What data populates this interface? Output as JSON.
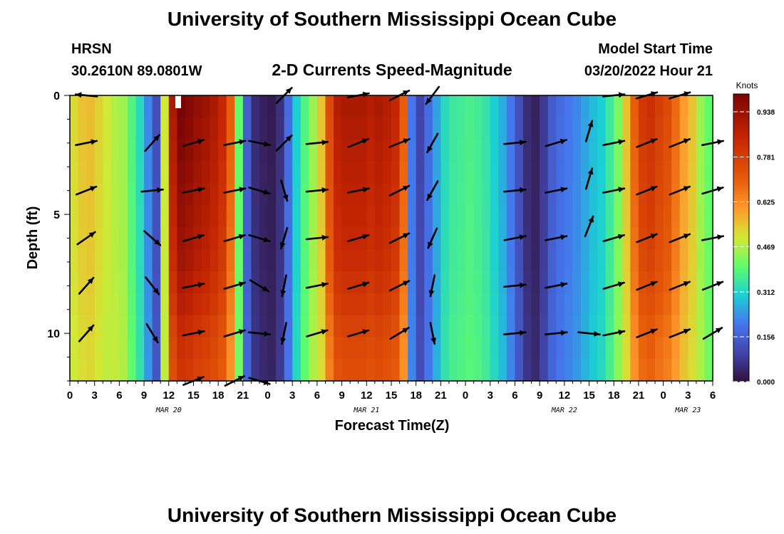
{
  "page": {
    "title": "University of Southern Mississippi Ocean Cube",
    "footer_title": "University of Southern Mississippi Ocean Cube"
  },
  "header": {
    "station": "HRSN",
    "coords": "30.2610N  89.0801W",
    "subtitle": "2-D Currents Speed-Magnitude",
    "model_label": "Model Start Time",
    "model_time": "03/20/2022 Hour 21"
  },
  "chart_data": {
    "type": "heatmap",
    "xlabel": "Forecast Time(Z)",
    "ylabel": "Depth (ft)",
    "x_start_hour": 0,
    "x_end_hour": 78,
    "x_tick_labels": [
      "0",
      "3",
      "6",
      "9",
      "12",
      "15",
      "18",
      "21",
      "0",
      "3",
      "6",
      "9",
      "12",
      "15",
      "18",
      "21",
      "0",
      "3",
      "6",
      "9",
      "12",
      "15",
      "18",
      "21",
      "0",
      "3",
      "6"
    ],
    "date_labels": [
      {
        "text": "MAR 20",
        "hour": 12
      },
      {
        "text": "MAR 21",
        "hour": 36
      },
      {
        "text": "MAR 22",
        "hour": 60
      },
      {
        "text": "MAR 23",
        "hour": 75
      }
    ],
    "ylim": [
      0,
      12
    ],
    "y_ticks": [
      0,
      5,
      10
    ],
    "colorbar": {
      "title": "Knots",
      "min": 0,
      "max": 1.0,
      "ticks": [
        "0.000",
        "0.156",
        "0.312",
        "0.469",
        "0.625",
        "0.781",
        "0.938"
      ]
    },
    "speed_profile_hourly": [
      0.52,
      0.55,
      0.56,
      0.53,
      0.5,
      0.47,
      0.45,
      0.38,
      0.32,
      0.22,
      0.12,
      0.5,
      0.9,
      1.0,
      0.98,
      0.95,
      0.93,
      0.9,
      0.85,
      0.7,
      0.4,
      0.15,
      0.05,
      0.03,
      0.02,
      0.06,
      0.18,
      0.3,
      0.38,
      0.45,
      0.55,
      0.75,
      0.88,
      0.9,
      0.9,
      0.9,
      0.88,
      0.9,
      0.88,
      0.85,
      0.7,
      0.2,
      0.1,
      0.18,
      0.25,
      0.32,
      0.35,
      0.36,
      0.37,
      0.36,
      0.34,
      0.3,
      0.26,
      0.2,
      0.12,
      0.05,
      0.03,
      0.08,
      0.15,
      0.18,
      0.2,
      0.22,
      0.25,
      0.28,
      0.3,
      0.35,
      0.42,
      0.55,
      0.7,
      0.8,
      0.82,
      0.78,
      0.75,
      0.68,
      0.6,
      0.55,
      0.45,
      0.4,
      0.4
    ],
    "depth_factor": [
      1.0,
      0.98,
      0.96,
      0.94,
      0.92,
      0.9,
      0.88,
      0.86,
      0.82,
      0.78,
      0.72,
      0.68,
      0.65
    ],
    "vectors": [
      {
        "hour": 2,
        "depth": 0,
        "u": -1,
        "v": 0.1
      },
      {
        "hour": 2,
        "depth": 2,
        "u": 1,
        "v": 0.2
      },
      {
        "hour": 2,
        "depth": 4,
        "u": 1,
        "v": 0.4
      },
      {
        "hour": 2,
        "depth": 6,
        "u": 1,
        "v": 0.7
      },
      {
        "hour": 2,
        "depth": 8,
        "u": 0.8,
        "v": 0.9
      },
      {
        "hour": 2,
        "depth": 10,
        "u": 0.8,
        "v": 0.9
      },
      {
        "hour": 10,
        "depth": 2,
        "u": 0.8,
        "v": 0.9
      },
      {
        "hour": 10,
        "depth": 4,
        "u": 1,
        "v": 0.1
      },
      {
        "hour": 10,
        "depth": 6,
        "u": 0.8,
        "v": -0.7
      },
      {
        "hour": 10,
        "depth": 8,
        "u": 0.7,
        "v": -0.9
      },
      {
        "hour": 10,
        "depth": 10,
        "u": 0.6,
        "v": -1.0
      },
      {
        "hour": 15,
        "depth": 2,
        "u": 1,
        "v": 0.3
      },
      {
        "hour": 15,
        "depth": 4,
        "u": 1,
        "v": 0.2
      },
      {
        "hour": 15,
        "depth": 6,
        "u": 1,
        "v": 0.3
      },
      {
        "hour": 15,
        "depth": 8,
        "u": 1,
        "v": 0.2
      },
      {
        "hour": 15,
        "depth": 10,
        "u": 1,
        "v": 0.2
      },
      {
        "hour": 15,
        "depth": 12,
        "u": 1,
        "v": 0.4
      },
      {
        "hour": 20,
        "depth": 2,
        "u": 1,
        "v": 0.2
      },
      {
        "hour": 20,
        "depth": 4,
        "u": 1,
        "v": 0.2
      },
      {
        "hour": 20,
        "depth": 6,
        "u": 1,
        "v": 0.3
      },
      {
        "hour": 20,
        "depth": 8,
        "u": 1,
        "v": 0.3
      },
      {
        "hour": 20,
        "depth": 10,
        "u": 1,
        "v": 0.3
      },
      {
        "hour": 20,
        "depth": 12,
        "u": 1,
        "v": 0.5
      },
      {
        "hour": 23,
        "depth": 2,
        "u": 1,
        "v": -0.2
      },
      {
        "hour": 23,
        "depth": 4,
        "u": 1,
        "v": -0.3
      },
      {
        "hour": 23,
        "depth": 6,
        "u": 1,
        "v": -0.3
      },
      {
        "hour": 23,
        "depth": 8,
        "u": 1,
        "v": -0.6
      },
      {
        "hour": 23,
        "depth": 10,
        "u": 1,
        "v": -0.1
      },
      {
        "hour": 23,
        "depth": 12,
        "u": 1,
        "v": -0.3
      },
      {
        "hour": 26,
        "depth": 0,
        "u": 1,
        "v": 1
      },
      {
        "hour": 26,
        "depth": 2,
        "u": 1,
        "v": 1
      },
      {
        "hour": 26,
        "depth": 4,
        "u": 0.3,
        "v": -1
      },
      {
        "hour": 26,
        "depth": 6,
        "u": -0.3,
        "v": -1
      },
      {
        "hour": 26,
        "depth": 8,
        "u": -0.2,
        "v": -1
      },
      {
        "hour": 26,
        "depth": 10,
        "u": -0.2,
        "v": -1
      },
      {
        "hour": 30,
        "depth": 2,
        "u": 1,
        "v": 0.1
      },
      {
        "hour": 30,
        "depth": 4,
        "u": 1,
        "v": 0.1
      },
      {
        "hour": 30,
        "depth": 6,
        "u": 1,
        "v": 0.1
      },
      {
        "hour": 30,
        "depth": 8,
        "u": 1,
        "v": 0.2
      },
      {
        "hour": 30,
        "depth": 10,
        "u": 1,
        "v": 0.3
      },
      {
        "hour": 35,
        "depth": 0,
        "u": 1,
        "v": 0.2
      },
      {
        "hour": 35,
        "depth": 2,
        "u": 1,
        "v": 0.4
      },
      {
        "hour": 35,
        "depth": 4,
        "u": 1,
        "v": 0.2
      },
      {
        "hour": 35,
        "depth": 6,
        "u": 1,
        "v": 0.3
      },
      {
        "hour": 35,
        "depth": 8,
        "u": 1,
        "v": 0.3
      },
      {
        "hour": 35,
        "depth": 10,
        "u": 1,
        "v": 0.3
      },
      {
        "hour": 40,
        "depth": 0,
        "u": 1,
        "v": 0.5
      },
      {
        "hour": 40,
        "depth": 2,
        "u": 1,
        "v": 0.4
      },
      {
        "hour": 40,
        "depth": 4,
        "u": 1,
        "v": 0.5
      },
      {
        "hour": 40,
        "depth": 6,
        "u": 1,
        "v": 0.5
      },
      {
        "hour": 40,
        "depth": 8,
        "u": 1,
        "v": 0.5
      },
      {
        "hour": 40,
        "depth": 10,
        "u": 1,
        "v": 0.6
      },
      {
        "hour": 44,
        "depth": 0,
        "u": -0.6,
        "v": -0.8
      },
      {
        "hour": 44,
        "depth": 2,
        "u": -0.5,
        "v": -0.9
      },
      {
        "hour": 44,
        "depth": 4,
        "u": -0.5,
        "v": -0.9
      },
      {
        "hour": 44,
        "depth": 6,
        "u": -0.4,
        "v": -0.9
      },
      {
        "hour": 44,
        "depth": 8,
        "u": -0.2,
        "v": -1
      },
      {
        "hour": 44,
        "depth": 10,
        "u": 0.2,
        "v": -1
      },
      {
        "hour": 54,
        "depth": 2,
        "u": 1,
        "v": 0.1
      },
      {
        "hour": 54,
        "depth": 4,
        "u": 1,
        "v": 0.1
      },
      {
        "hour": 54,
        "depth": 6,
        "u": 1,
        "v": 0.2
      },
      {
        "hour": 54,
        "depth": 8,
        "u": 1,
        "v": 0.1
      },
      {
        "hour": 54,
        "depth": 10,
        "u": 1,
        "v": 0.1
      },
      {
        "hour": 59,
        "depth": 2,
        "u": 1,
        "v": 0.3
      },
      {
        "hour": 59,
        "depth": 4,
        "u": 1,
        "v": 0.2
      },
      {
        "hour": 59,
        "depth": 6,
        "u": 1,
        "v": 0.2
      },
      {
        "hour": 59,
        "depth": 8,
        "u": 1,
        "v": 0.2
      },
      {
        "hour": 59,
        "depth": 10,
        "u": 1,
        "v": 0.1
      },
      {
        "hour": 63,
        "depth": 1.5,
        "u": 0.3,
        "v": 1
      },
      {
        "hour": 63,
        "depth": 3.5,
        "u": 0.3,
        "v": 1
      },
      {
        "hour": 63,
        "depth": 5.5,
        "u": 0.4,
        "v": 1
      },
      {
        "hour": 63,
        "depth": 10,
        "u": 1,
        "v": -0.1
      },
      {
        "hour": 66,
        "depth": 0,
        "u": 1,
        "v": 0.1
      },
      {
        "hour": 66,
        "depth": 2,
        "u": 1,
        "v": 0.2
      },
      {
        "hour": 66,
        "depth": 4,
        "u": 1,
        "v": 0.2
      },
      {
        "hour": 66,
        "depth": 6,
        "u": 1,
        "v": 0.3
      },
      {
        "hour": 66,
        "depth": 8,
        "u": 1,
        "v": 0.3
      },
      {
        "hour": 66,
        "depth": 10,
        "u": 1,
        "v": 0.2
      },
      {
        "hour": 70,
        "depth": 0,
        "u": 1,
        "v": 0.3
      },
      {
        "hour": 70,
        "depth": 2,
        "u": 1,
        "v": 0.4
      },
      {
        "hour": 70,
        "depth": 4,
        "u": 1,
        "v": 0.4
      },
      {
        "hour": 70,
        "depth": 6,
        "u": 1,
        "v": 0.4
      },
      {
        "hour": 70,
        "depth": 8,
        "u": 1,
        "v": 0.4
      },
      {
        "hour": 70,
        "depth": 10,
        "u": 1,
        "v": 0.4
      },
      {
        "hour": 74,
        "depth": 0,
        "u": 1,
        "v": 0.3
      },
      {
        "hour": 74,
        "depth": 2,
        "u": 1,
        "v": 0.4
      },
      {
        "hour": 74,
        "depth": 4,
        "u": 1,
        "v": 0.4
      },
      {
        "hour": 74,
        "depth": 6,
        "u": 1,
        "v": 0.4
      },
      {
        "hour": 74,
        "depth": 8,
        "u": 1,
        "v": 0.4
      },
      {
        "hour": 74,
        "depth": 10,
        "u": 1,
        "v": 0.4
      },
      {
        "hour": 78,
        "depth": 2,
        "u": 1,
        "v": 0.2
      },
      {
        "hour": 78,
        "depth": 4,
        "u": 1,
        "v": 0.3
      },
      {
        "hour": 78,
        "depth": 6,
        "u": 1,
        "v": 0.2
      },
      {
        "hour": 78,
        "depth": 8,
        "u": 1,
        "v": 0.4
      },
      {
        "hour": 78,
        "depth": 10,
        "u": 1,
        "v": 0.6
      }
    ]
  }
}
